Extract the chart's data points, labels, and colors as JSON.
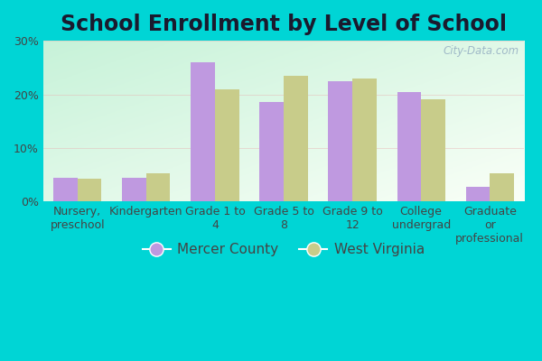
{
  "title": "School Enrollment by Level of School",
  "categories": [
    "Nursery,\npreschool",
    "Kindergarten",
    "Grade 1 to\n4",
    "Grade 5 to\n8",
    "Grade 9 to\n12",
    "College\nundergrad",
    "Graduate\nor\nprofessional"
  ],
  "mercer_values": [
    4.5,
    4.5,
    26.0,
    18.5,
    22.5,
    20.5,
    2.8
  ],
  "wv_values": [
    4.2,
    5.2,
    21.0,
    23.5,
    23.0,
    19.0,
    5.2
  ],
  "mercer_color": "#bf99e0",
  "wv_color": "#c8cc8a",
  "background_outer": "#00d5d5",
  "ylim": [
    0,
    30
  ],
  "yticks": [
    0,
    10,
    20,
    30
  ],
  "legend_mercer": "Mercer County",
  "legend_wv": "West Virginia",
  "watermark": "City-Data.com",
  "title_fontsize": 17,
  "tick_fontsize": 9,
  "legend_fontsize": 11
}
